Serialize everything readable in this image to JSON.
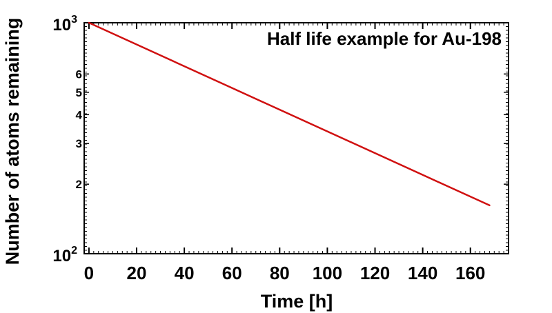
{
  "chart_data": {
    "type": "line",
    "title": "Half life example for Au-198",
    "xlabel": "Time [h]",
    "ylabel": "Number of atoms remaining",
    "xlim": [
      -2,
      176
    ],
    "ylim": [
      100,
      1000
    ],
    "yscale": "log",
    "grid": false,
    "x_ticks": [
      0,
      20,
      40,
      60,
      80,
      100,
      120,
      140,
      160
    ],
    "x_tick_labels": [
      "0",
      "20",
      "40",
      "60",
      "80",
      "100",
      "120",
      "140",
      "160"
    ],
    "y_major_ticks": [
      {
        "value": 1000,
        "base": "10",
        "exp": "3"
      },
      {
        "value": 100,
        "base": "10",
        "exp": "2"
      }
    ],
    "y_minor_ticks": [
      {
        "value": 200,
        "label": "2"
      },
      {
        "value": 300,
        "label": "3"
      },
      {
        "value": 400,
        "label": "4"
      },
      {
        "value": 500,
        "label": "5"
      },
      {
        "value": 600,
        "label": "6"
      }
    ],
    "series": [
      {
        "color": "#d01010",
        "x": [
          0,
          168
        ],
        "y": [
          1000,
          162
        ]
      }
    ]
  }
}
